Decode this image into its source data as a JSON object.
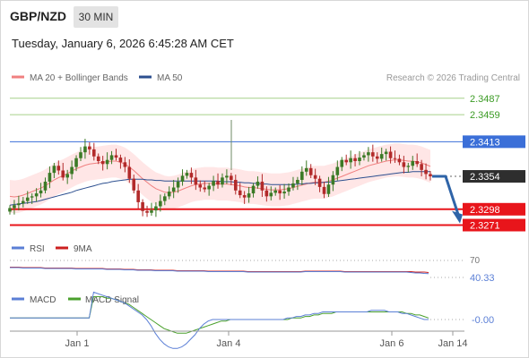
{
  "header": {
    "symbol": "GBP/NZD",
    "timeframe": "30 MIN",
    "datetime": "Tuesday, January 6, 2026 6:45:28 AM CET"
  },
  "legend": {
    "ma20": "MA 20 + Bollinger Bands",
    "ma50": "MA 50",
    "credit": "Research © 2026 Trading Central"
  },
  "colors": {
    "up": "#3b7a26",
    "down": "#b22a2a",
    "ma20": "#f08080",
    "ma50": "#2c4f8f",
    "band_fill": "#ffe3e3",
    "target_line": "#a6d18a",
    "pivot_line": "#3b6fd8",
    "support": "#e8151b",
    "arrow": "#2f64a8",
    "rsi": "#5b7fd6",
    "rsi_ma": "#cc1f1f",
    "macd": "#5b7fd6",
    "macd_signal": "#4aa02c"
  },
  "chart_data": [
    {
      "type": "candlestick",
      "title": "GBP/NZD 30 MIN",
      "ylim": [
        2.3255,
        2.3505
      ],
      "x_ticks": [
        "Jan 1",
        "Jan 4",
        "Jan 6",
        "Jan 14"
      ],
      "current_price": 2.3354,
      "levels": [
        {
          "label": "2.3487",
          "value": 2.3487,
          "kind": "target"
        },
        {
          "label": "2.3459",
          "value": 2.3459,
          "kind": "target"
        },
        {
          "label": "2.3413",
          "value": 2.3413,
          "kind": "pivot"
        },
        {
          "label": "2.3354",
          "value": 2.3354,
          "kind": "last"
        },
        {
          "label": "2.3298",
          "value": 2.3298,
          "kind": "support"
        },
        {
          "label": "2.3271",
          "value": 2.3271,
          "kind": "support"
        }
      ],
      "forecast": {
        "direction": "down",
        "from": 2.3354,
        "to": 2.328
      },
      "close": [
        2.33,
        2.3305,
        2.3308,
        2.3312,
        2.3318,
        2.332,
        2.3325,
        2.333,
        2.3345,
        2.336,
        2.3372,
        2.3364,
        2.3352,
        2.3358,
        2.337,
        2.3385,
        2.3395,
        2.3405,
        2.34,
        2.3388,
        2.338,
        2.3375,
        2.3382,
        2.339,
        2.3386,
        2.3378,
        2.337,
        2.335,
        2.333,
        2.331,
        2.3295,
        2.3292,
        2.3296,
        2.3303,
        2.3312,
        2.332,
        2.3328,
        2.3335,
        2.3345,
        2.3355,
        2.336,
        2.3352,
        2.334,
        2.3335,
        2.3332,
        2.3338,
        2.3346,
        2.334,
        2.3352,
        2.3355,
        2.3348,
        2.333,
        2.3322,
        2.3318,
        2.3325,
        2.3338,
        2.3345,
        2.333,
        2.332,
        2.3326,
        2.333,
        2.3325,
        2.3328,
        2.3335,
        2.3342,
        2.3348,
        2.3362,
        2.3368,
        2.3356,
        2.335,
        2.3336,
        2.3324,
        2.334,
        2.3356,
        2.337,
        2.3382,
        2.3378,
        2.3385,
        2.338,
        2.3386,
        2.339,
        2.3395,
        2.3388,
        2.3384,
        2.3392,
        2.3396,
        2.3385,
        2.3384,
        2.3378,
        2.337,
        2.3372,
        2.338,
        2.3375,
        2.3365,
        2.3358,
        2.3354
      ],
      "ma20": [
        2.332,
        2.3319,
        2.332,
        2.3322,
        2.3325,
        2.3328,
        2.3331,
        2.3334,
        2.3338,
        2.3343,
        2.3348,
        2.3352,
        2.3355,
        2.3359,
        2.3363,
        2.3367,
        2.337,
        2.3373,
        2.3375,
        2.3376,
        2.3377,
        2.3378,
        2.3379,
        2.338,
        2.338,
        2.3378,
        2.3375,
        2.337,
        2.3364,
        2.3357,
        2.335,
        2.3344,
        2.3338,
        2.3333,
        2.333,
        2.3327,
        2.3326,
        2.3327,
        2.3329,
        2.3332,
        2.3335,
        2.3338,
        2.334,
        2.3341,
        2.3342,
        2.3342,
        2.3342,
        2.3341,
        2.3341,
        2.3341,
        2.334,
        2.3339,
        2.3338,
        2.3336,
        2.3335,
        2.3335,
        2.3334,
        2.3333,
        2.3332,
        2.3331,
        2.3331,
        2.3331,
        2.3332,
        2.3333,
        2.3335,
        2.3337,
        2.3339,
        2.3341,
        2.3343,
        2.3344,
        2.3344,
        2.3344,
        2.3346,
        2.3348,
        2.3351,
        2.3354,
        2.3357,
        2.336,
        2.3363,
        2.3366,
        2.3369,
        2.3372,
        2.3374,
        2.3376,
        2.3378,
        2.338,
        2.3381,
        2.3382,
        2.3382,
        2.3381,
        2.338,
        2.338,
        2.3379,
        2.3377,
        2.3374,
        2.3371
      ],
      "ma50": [
        2.3305,
        2.3306,
        2.3307,
        2.3308,
        2.3309,
        2.331,
        2.3311,
        2.3313,
        2.3315,
        2.3317,
        2.3319,
        2.3321,
        2.3323,
        2.3325,
        2.3327,
        2.333,
        2.3332,
        2.3334,
        2.3336,
        2.3338,
        2.334,
        2.3342,
        2.3343,
        2.3345,
        2.3346,
        2.3347,
        2.3348,
        2.3349,
        2.3349,
        2.3349,
        2.3349,
        2.3348,
        2.3348,
        2.3347,
        2.3347,
        2.3346,
        2.3346,
        2.3346,
        2.3346,
        2.3346,
        2.3346,
        2.3346,
        2.3346,
        2.3346,
        2.3346,
        2.3346,
        2.3346,
        2.3346,
        2.3345,
        2.3345,
        2.3345,
        2.3344,
        2.3344,
        2.3343,
        2.3343,
        2.3342,
        2.3342,
        2.3341,
        2.3341,
        2.334,
        2.334,
        2.334,
        2.334,
        2.334,
        2.334,
        2.3341,
        2.3341,
        2.3342,
        2.3342,
        2.3343,
        2.3343,
        2.3344,
        2.3344,
        2.3345,
        2.3346,
        2.3347,
        2.3348,
        2.3349,
        2.335,
        2.3351,
        2.3352,
        2.3353,
        2.3354,
        2.3355,
        2.3356,
        2.3357,
        2.3358,
        2.3359,
        2.336,
        2.3361,
        2.3361,
        2.3362,
        2.3362,
        2.3362,
        2.3362,
        2.3362
      ],
      "band_width": 0.0028
    },
    {
      "type": "line",
      "title": "RSI",
      "legend": [
        "RSI",
        "9MA"
      ],
      "ylim": [
        0,
        100
      ],
      "levels": [
        {
          "label": "70",
          "value": 70
        }
      ],
      "last_value_label": "40.33",
      "rsi": [
        54,
        54,
        54,
        53,
        53,
        53,
        53,
        53,
        52,
        52,
        52,
        52,
        52,
        52,
        52,
        51,
        51,
        51,
        51,
        51,
        51,
        51,
        50,
        50,
        50,
        50,
        49,
        49,
        49,
        48,
        48,
        48,
        48,
        47,
        47,
        47,
        47,
        47,
        46,
        46,
        46,
        46,
        46,
        46,
        46,
        45,
        45,
        45,
        45,
        45,
        45,
        45,
        45,
        45,
        44,
        44,
        44,
        44,
        44,
        44,
        44,
        44,
        44,
        44,
        44,
        44,
        44,
        45,
        45,
        45,
        45,
        45,
        45,
        45,
        45,
        45,
        44,
        44,
        44,
        44,
        44,
        44,
        44,
        44,
        44,
        44,
        44,
        44,
        44,
        44,
        44,
        43,
        42,
        42,
        41,
        40.33
      ],
      "rsi_ma": [
        55,
        55,
        55,
        54,
        54,
        54,
        54,
        54,
        53,
        53,
        53,
        53,
        53,
        53,
        53,
        52,
        52,
        52,
        52,
        52,
        52,
        52,
        51,
        51,
        51,
        51,
        50,
        50,
        50,
        49,
        49,
        49,
        49,
        48,
        48,
        48,
        48,
        48,
        47,
        47,
        47,
        47,
        47,
        47,
        47,
        46,
        46,
        46,
        46,
        46,
        46,
        46,
        46,
        46,
        45,
        45,
        45,
        45,
        45,
        45,
        45,
        45,
        45,
        45,
        45,
        45,
        45,
        46,
        46,
        46,
        46,
        46,
        46,
        46,
        46,
        46,
        45,
        45,
        45,
        45,
        45,
        45,
        45,
        45,
        45,
        45,
        45,
        45,
        45,
        45,
        45,
        45,
        44,
        44,
        44,
        43
      ]
    },
    {
      "type": "line",
      "title": "MACD",
      "legend": [
        "MACD",
        "MACD Signal"
      ],
      "last_value_label": "-0.00",
      "macd": [
        0.0001,
        0.0001,
        0.0001,
        0.0001,
        0.0001,
        0.0001,
        0.0001,
        0.0001,
        0.0001,
        0.0001,
        0.0001,
        0.0001,
        0.0001,
        0.0001,
        0.0001,
        0.0001,
        0.0001,
        0.0001,
        0.0001,
        0.0018,
        0.0017,
        0.0016,
        0.0015,
        0.0014,
        0.0013,
        0.0012,
        0.0011,
        0.0009,
        0.0007,
        0.0005,
        0.0003,
        0.0,
        -0.0004,
        -0.0009,
        -0.0013,
        -0.0016,
        -0.0018,
        -0.0019,
        -0.0019,
        -0.0018,
        -0.0016,
        -0.0013,
        -0.001,
        -0.0006,
        -0.0003,
        -0.0001,
        0.0,
        0.0,
        0.0,
        0.0,
        0.0,
        0.0,
        0.0,
        0.0,
        0.0,
        0.0,
        0.0,
        0.0,
        0.0,
        0.0,
        0.0,
        0.0,
        0.0,
        0.0001,
        0.0001,
        0.0002,
        0.0002,
        0.0003,
        0.0003,
        0.0004,
        0.0004,
        0.0005,
        0.0005,
        0.0005,
        0.0005,
        0.0005,
        0.0005,
        0.0005,
        0.0005,
        0.0005,
        0.0005,
        0.0005,
        0.0006,
        0.0006,
        0.0006,
        0.0006,
        0.0005,
        0.0005,
        0.0005,
        0.0004,
        0.0004,
        0.0003,
        0.0002,
        0.0001,
        0.0,
        0.0
      ],
      "macd_signal": [
        0.0001,
        0.0001,
        0.0001,
        0.0001,
        0.0001,
        0.0001,
        0.0001,
        0.0001,
        0.0001,
        0.0001,
        0.0001,
        0.0001,
        0.0001,
        0.0001,
        0.0001,
        0.0001,
        0.0001,
        0.0001,
        0.0001,
        0.0015,
        0.0015,
        0.0015,
        0.0014,
        0.0014,
        0.0013,
        0.0012,
        0.0011,
        0.001,
        0.0008,
        0.0006,
        0.0004,
        0.0002,
        0.0,
        -0.0002,
        -0.0004,
        -0.0006,
        -0.0007,
        -0.0008,
        -0.0009,
        -0.0009,
        -0.0009,
        -0.0008,
        -0.0007,
        -0.0006,
        -0.0005,
        -0.0004,
        -0.0003,
        -0.0002,
        -0.0001,
        -0.0001,
        0.0,
        0.0,
        0.0,
        0.0,
        0.0,
        0.0,
        0.0,
        0.0,
        0.0,
        0.0,
        0.0,
        0.0,
        0.0,
        0.0,
        0.0001,
        0.0001,
        0.0001,
        0.0002,
        0.0002,
        0.0003,
        0.0003,
        0.0004,
        0.0004,
        0.0004,
        0.0005,
        0.0005,
        0.0005,
        0.0005,
        0.0005,
        0.0005,
        0.0005,
        0.0005,
        0.0005,
        0.0005,
        0.0005,
        0.0005,
        0.0005,
        0.0005,
        0.0005,
        0.0005,
        0.0004,
        0.0004,
        0.0003,
        0.0003,
        0.0002,
        0.0001
      ]
    }
  ]
}
